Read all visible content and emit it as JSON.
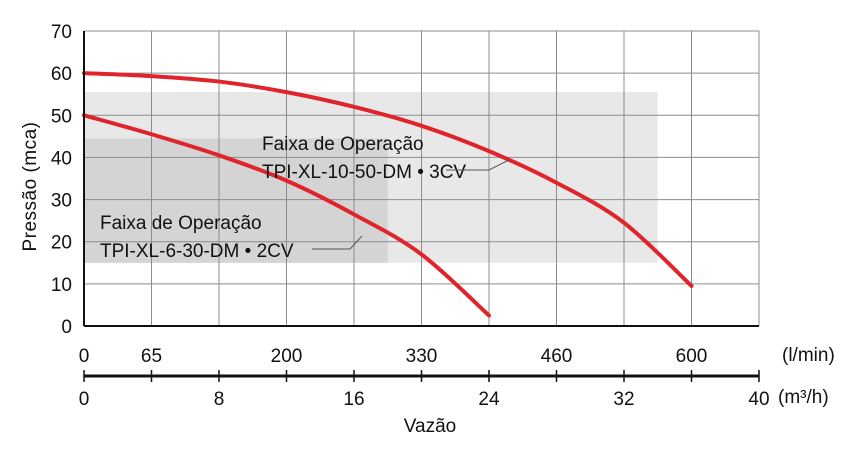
{
  "chart_data": {
    "type": "line",
    "title": "",
    "xlabel": "Vazão",
    "ylabel": "Pressão  (mca)",
    "ylim": [
      0,
      70
    ],
    "y_ticks": [
      "0",
      "10",
      "20",
      "30",
      "40",
      "50",
      "60",
      "70"
    ],
    "x_axis_m3h": {
      "unit_label": "(m³/h)",
      "range": [
        0,
        40
      ],
      "ticks": [
        "0",
        "8",
        "16",
        "24",
        "32",
        "40"
      ]
    },
    "x_axis_lmin": {
      "unit_label": "(l/min)",
      "ticks": [
        {
          "label": "0",
          "at_m3h": 0
        },
        {
          "label": "65",
          "at_m3h": 4
        },
        {
          "label": "200",
          "at_m3h": 12
        },
        {
          "label": "330",
          "at_m3h": 20
        },
        {
          "label": "460",
          "at_m3h": 28
        },
        {
          "label": "600",
          "at_m3h": 36
        }
      ]
    },
    "grid": true,
    "operating_ranges": [
      {
        "label_line1": "Faixa de Operação",
        "label_line2": "TPI-XL-10-50-DM • 3CV",
        "x_range_m3h": [
          0,
          34
        ],
        "y_range": [
          15,
          55.5
        ],
        "color": "#e8e8e8"
      },
      {
        "label_line1": "Faixa de Operação",
        "label_line2": "TPI-XL-6-30-DM • 2CV",
        "x_range_m3h": [
          0,
          18
        ],
        "y_range": [
          15,
          44.5
        ],
        "color": "#d4d4d4"
      }
    ],
    "series": [
      {
        "color": "#e0242b",
        "points": [
          [
            0,
            60
          ],
          [
            4,
            59.3
          ],
          [
            8,
            58
          ],
          [
            12,
            55.5
          ],
          [
            16,
            52
          ],
          [
            20,
            47.5
          ],
          [
            24,
            41.5
          ],
          [
            28,
            34
          ],
          [
            32,
            24.5
          ],
          [
            36,
            9.5
          ]
        ]
      },
      {
        "color": "#e0242b",
        "points": [
          [
            0,
            50
          ],
          [
            4,
            45.5
          ],
          [
            8,
            40.5
          ],
          [
            12,
            34.5
          ],
          [
            16,
            26.5
          ],
          [
            20,
            17
          ],
          [
            24,
            2.5
          ]
        ]
      }
    ]
  }
}
